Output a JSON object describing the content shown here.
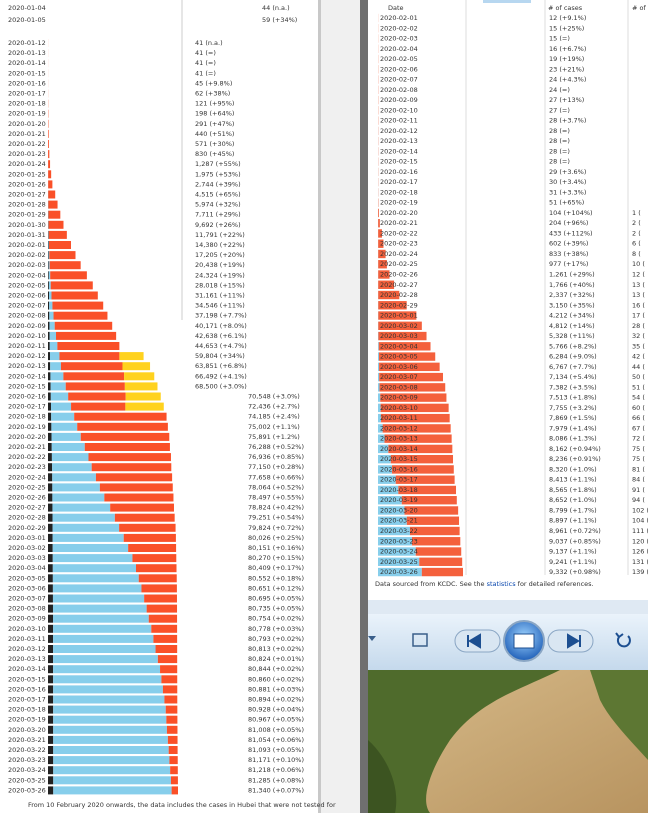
{
  "left_table": {
    "colors": [
      "#222222",
      "#87ceeb",
      "#fa5028",
      "#ffd21e"
    ],
    "top_rows": [
      [
        "2020-01-04",
        "44 (n.a.)"
      ],
      [
        "2020-01-05",
        "59 (+34%)"
      ]
    ],
    "rows": [
      [
        "2020-01-12",
        "41 (n.a.)",
        [
          1,
          0,
          40,
          0
        ]
      ],
      [
        "2020-01-13",
        "41 (=)",
        [
          1,
          0,
          40,
          0
        ]
      ],
      [
        "2020-01-14",
        "41 (=)",
        [
          1,
          0,
          40,
          0
        ]
      ],
      [
        "2020-01-15",
        "41 (=)",
        [
          2,
          0,
          39,
          0
        ]
      ],
      [
        "2020-01-16",
        "45 (+9.8%)",
        [
          2,
          0,
          43,
          0
        ]
      ],
      [
        "2020-01-17",
        "62 (+38%)",
        [
          2,
          0,
          60,
          0
        ]
      ],
      [
        "2020-01-18",
        "121 (+95%)",
        [
          3,
          0,
          118,
          0
        ]
      ],
      [
        "2020-01-19",
        "198 (+64%)",
        [
          3,
          0,
          195,
          0
        ]
      ],
      [
        "2020-01-20",
        "291 (+47%)",
        [
          6,
          25,
          260,
          0
        ]
      ],
      [
        "2020-01-21",
        "440 (+51%)",
        [
          9,
          25,
          406,
          0
        ]
      ],
      [
        "2020-01-22",
        "571 (+30%)",
        [
          17,
          28,
          526,
          0
        ]
      ],
      [
        "2020-01-23",
        "830 (+45%)",
        [
          25,
          34,
          771,
          0
        ]
      ],
      [
        "2020-01-24",
        "1,287 (+55%)",
        [
          41,
          38,
          1208,
          0
        ]
      ],
      [
        "2020-01-25",
        "1,975 (+53%)",
        [
          56,
          49,
          1870,
          0
        ]
      ],
      [
        "2020-01-26",
        "2,744 (+39%)",
        [
          80,
          51,
          2613,
          0
        ]
      ],
      [
        "2020-01-27",
        "4,515 (+65%)",
        [
          106,
          60,
          4349,
          0
        ]
      ],
      [
        "2020-01-28",
        "5,974 (+32%)",
        [
          132,
          103,
          5739,
          0
        ]
      ],
      [
        "2020-01-29",
        "7,711 (+29%)",
        [
          170,
          124,
          7417,
          0
        ]
      ],
      [
        "2020-01-30",
        "9,692 (+26%)",
        [
          213,
          171,
          9308,
          0
        ]
      ],
      [
        "2020-01-31",
        "11,791 (+22%)",
        [
          259,
          243,
          11289,
          0
        ]
      ],
      [
        "2020-02-01",
        "14,380 (+22%)",
        [
          304,
          328,
          13748,
          0
        ]
      ],
      [
        "2020-02-02",
        "17,205 (+20%)",
        [
          361,
          475,
          16369,
          0
        ]
      ],
      [
        "2020-02-03",
        "20,438 (+19%)",
        [
          425,
          632,
          19381,
          0
        ]
      ],
      [
        "2020-02-04",
        "24,324 (+19%)",
        [
          490,
          892,
          22942,
          0
        ]
      ],
      [
        "2020-02-05",
        "28,018 (+15%)",
        [
          563,
          1153,
          26302,
          0
        ]
      ],
      [
        "2020-02-06",
        "31,161 (+11%)",
        [
          636,
          1540,
          28985,
          0
        ]
      ],
      [
        "2020-02-07",
        "34,546 (+11%)",
        [
          722,
          2050,
          31774,
          0
        ]
      ],
      [
        "2020-02-08",
        "37,198 (+7.7%)",
        [
          811,
          2649,
          33738,
          0
        ]
      ],
      [
        "2020-02-09",
        "40,171 (+8.0%)",
        [
          908,
          3281,
          35982,
          0
        ]
      ],
      [
        "2020-02-10",
        "42,638 (+6.1%)",
        [
          1016,
          3996,
          37626,
          0
        ]
      ],
      [
        "2020-02-11",
        "44,653 (+4.7%)",
        [
          1113,
          4740,
          38800,
          0
        ]
      ],
      [
        "2020-02-12",
        "59,804 (+34%)",
        [
          1259,
          5911,
          37500,
          15134
        ]
      ],
      [
        "2020-02-13",
        "63,851 (+6.8%)",
        [
          1380,
          6723,
          38500,
          17248
        ]
      ],
      [
        "2020-02-14",
        "66,492 (+4.1%)",
        [
          1523,
          8096,
          38000,
          18873
        ]
      ],
      [
        "2020-02-15",
        "68,500 (+3.0%)",
        [
          1665,
          9419,
          37000,
          20416
        ]
      ],
      [
        "2020-02-16",
        "70,548 (+3.0%)",
        [
          1770,
          10844,
          36000,
          21934
        ]
      ],
      [
        "2020-02-17",
        "72,436 (+2.7%)",
        [
          1868,
          12552,
          34000,
          24016
        ]
      ],
      [
        "2020-02-18",
        "74,185 (+2.4%)",
        [
          2004,
          14376,
          57805,
          0
        ]
      ],
      [
        "2020-02-19",
        "75,002 (+1.1%)",
        [
          2118,
          16155,
          56729,
          0
        ]
      ],
      [
        "2020-02-20",
        "75,891 (+1.2%)",
        [
          2236,
          18264,
          55391,
          0
        ]
      ],
      [
        "2020-02-21",
        "76,288 (+0.52%)",
        [
          2345,
          20659,
          53284,
          0
        ]
      ],
      [
        "2020-02-22",
        "76,936 (+0.85%)",
        [
          2442,
          22888,
          51606,
          0
        ]
      ],
      [
        "2020-02-23",
        "77,150 (+0.28%)",
        [
          2592,
          24734,
          49824,
          0
        ]
      ],
      [
        "2020-02-24",
        "77,658 (+0.66%)",
        [
          2663,
          27323,
          47672,
          0
        ]
      ],
      [
        "2020-02-25",
        "78,064 (+0.52%)",
        [
          2715,
          29745,
          45604,
          0
        ]
      ],
      [
        "2020-02-26",
        "78,497 (+0.55%)",
        [
          2744,
          32495,
          43258,
          0
        ]
      ],
      [
        "2020-02-27",
        "78,824 (+0.42%)",
        [
          2788,
          36117,
          39919,
          0
        ]
      ],
      [
        "2020-02-28",
        "79,251 (+0.54%)",
        [
          2835,
          39002,
          37414,
          0
        ]
      ],
      [
        "2020-02-29",
        "79,824 (+0.72%)",
        [
          2870,
          41625,
          35329,
          0
        ]
      ],
      [
        "2020-03-01",
        "80,026 (+0.25%)",
        [
          2912,
          44462,
          32652,
          0
        ]
      ],
      [
        "2020-03-02",
        "80,151 (+0.16%)",
        [
          2943,
          47204,
          30004,
          0
        ]
      ],
      [
        "2020-03-03",
        "80,270 (+0.15%)",
        [
          2981,
          49856,
          27433,
          0
        ]
      ],
      [
        "2020-03-04",
        "80,409 (+0.17%)",
        [
          3012,
          52045,
          25352,
          0
        ]
      ],
      [
        "2020-03-05",
        "80,552 (+0.18%)",
        [
          3042,
          53726,
          23784,
          0
        ]
      ],
      [
        "2020-03-06",
        "80,651 (+0.12%)",
        [
          3070,
          55404,
          22177,
          0
        ]
      ],
      [
        "2020-03-07",
        "80,695 (+0.05%)",
        [
          3097,
          57065,
          20533,
          0
        ]
      ],
      [
        "2020-03-08",
        "80,735 (+0.05%)",
        [
          3119,
          58600,
          19016,
          0
        ]
      ],
      [
        "2020-03-09",
        "80,754 (+0.02%)",
        [
          3136,
          59897,
          17721,
          0
        ]
      ],
      [
        "2020-03-10",
        "80,778 (+0.03%)",
        [
          3158,
          61475,
          16145,
          0
        ]
      ],
      [
        "2020-03-11",
        "80,793 (+0.02%)",
        [
          3169,
          62793,
          14831,
          0
        ]
      ],
      [
        "2020-03-12",
        "80,813 (+0.02%)",
        [
          3176,
          64111,
          13526,
          0
        ]
      ],
      [
        "2020-03-13",
        "80,824 (+0.01%)",
        [
          3189,
          65541,
          12094,
          0
        ]
      ],
      [
        "2020-03-14",
        "80,844 (+0.02%)",
        [
          3199,
          66911,
          10734,
          0
        ]
      ],
      [
        "2020-03-15",
        "80,860 (+0.02%)",
        [
          3213,
          67749,
          9898,
          0
        ]
      ],
      [
        "2020-03-16",
        "80,881 (+0.03%)",
        [
          3226,
          68679,
          8976,
          0
        ]
      ],
      [
        "2020-03-17",
        "80,894 (+0.02%)",
        [
          3237,
          69601,
          8056,
          0
        ]
      ],
      [
        "2020-03-18",
        "80,928 (+0.04%)",
        [
          3245,
          70420,
          7263,
          0
        ]
      ],
      [
        "2020-03-19",
        "80,967 (+0.05%)",
        [
          3249,
          70790,
          6928,
          0
        ]
      ],
      [
        "2020-03-20",
        "81,008 (+0.05%)",
        [
          3255,
          71150,
          6603,
          0
        ]
      ],
      [
        "2020-03-21",
        "81,054 (+0.06%)",
        [
          3261,
          71740,
          6053,
          0
        ]
      ],
      [
        "2020-03-22",
        "81,093 (+0.05%)",
        [
          3270,
          72244,
          5579,
          0
        ]
      ],
      [
        "2020-03-23",
        "81,171 (+0.10%)",
        [
          3277,
          72703,
          5191,
          0
        ]
      ],
      [
        "2020-03-24",
        "81,218 (+0.06%)",
        [
          3281,
          73159,
          4778,
          0
        ]
      ],
      [
        "2020-03-25",
        "81,285 (+0.08%)",
        [
          3287,
          73650,
          4348,
          0
        ]
      ],
      [
        "2020-03-26",
        "81,340 (+0.07%)",
        [
          3292,
          74051,
          3997,
          0
        ]
      ]
    ],
    "footnote": "From 10 February 2020 onwards, the data includes the cases in Hubei that were not tested for"
  },
  "right_table": {
    "headers": [
      "Date",
      "# of cases",
      "# of de"
    ],
    "colors": [
      "#87ceeb",
      "#f4603c"
    ],
    "rows": [
      [
        "2020-02-01",
        "12 (+9.1%)",
        null,
        [
          0,
          12
        ]
      ],
      [
        "2020-02-02",
        "15 (+25%)",
        null,
        [
          0,
          15
        ]
      ],
      [
        "2020-02-03",
        "15 (=)",
        null,
        [
          0,
          15
        ]
      ],
      [
        "2020-02-04",
        "16 (+6.7%)",
        null,
        [
          0,
          16
        ]
      ],
      [
        "2020-02-05",
        "19 (+19%)",
        null,
        [
          0,
          19
        ]
      ],
      [
        "2020-02-06",
        "23 (+21%)",
        null,
        [
          1,
          22
        ]
      ],
      [
        "2020-02-07",
        "24 (+4.3%)",
        null,
        [
          2,
          22
        ]
      ],
      [
        "2020-02-08",
        "24 (=)",
        null,
        [
          2,
          22
        ]
      ],
      [
        "2020-02-09",
        "27 (+13%)",
        null,
        [
          3,
          24
        ]
      ],
      [
        "2020-02-10",
        "27 (=)",
        null,
        [
          3,
          24
        ]
      ],
      [
        "2020-02-11",
        "28 (+3.7%)",
        null,
        [
          3,
          25
        ]
      ],
      [
        "2020-02-12",
        "28 (=)",
        null,
        [
          7,
          21
        ]
      ],
      [
        "2020-02-13",
        "28 (=)",
        null,
        [
          7,
          21
        ]
      ],
      [
        "2020-02-14",
        "28 (=)",
        null,
        [
          7,
          21
        ]
      ],
      [
        "2020-02-15",
        "28 (=)",
        null,
        [
          7,
          21
        ]
      ],
      [
        "2020-02-16",
        "29 (+3.6%)",
        null,
        [
          9,
          20
        ]
      ],
      [
        "2020-02-17",
        "30 (+3.4%)",
        null,
        [
          10,
          20
        ]
      ],
      [
        "2020-02-18",
        "31 (+3.3%)",
        null,
        [
          12,
          19
        ]
      ],
      [
        "2020-02-19",
        "51 (+65%)",
        null,
        [
          16,
          35
        ]
      ],
      [
        "2020-02-20",
        "104 (+104%)",
        "1 (",
        [
          16,
          88
        ]
      ],
      [
        "2020-02-21",
        "204 (+96%)",
        "2 (",
        [
          16,
          188
        ]
      ],
      [
        "2020-02-22",
        "433 (+112%)",
        "2 (",
        [
          16,
          417
        ]
      ],
      [
        "2020-02-23",
        "602 (+39%)",
        "6 (",
        [
          18,
          584
        ]
      ],
      [
        "2020-02-24",
        "833 (+38%)",
        "8 (",
        [
          22,
          811
        ]
      ],
      [
        "2020-02-25",
        "977 (+17%)",
        "10 (",
        [
          22,
          955
        ]
      ],
      [
        "2020-02-26",
        "1,261 (+29%)",
        "12 (",
        [
          22,
          1239
        ]
      ],
      [
        "2020-02-27",
        "1,766 (+40%)",
        "13 (",
        [
          22,
          1744
        ]
      ],
      [
        "2020-02-28",
        "2,337 (+32%)",
        "13 (",
        [
          22,
          2315
        ]
      ],
      [
        "2020-02-29",
        "3,150 (+35%)",
        "16 (",
        [
          27,
          3123
        ]
      ],
      [
        "2020-03-01",
        "4,212 (+34%)",
        "17 (",
        [
          30,
          4182
        ]
      ],
      [
        "2020-03-02",
        "4,812 (+14%)",
        "28 (",
        [
          30,
          4782
        ]
      ],
      [
        "2020-03-03",
        "5,328 (+11%)",
        "32 (",
        [
          41,
          5287
        ]
      ],
      [
        "2020-03-04",
        "5,766 (+8.2%)",
        "35 (",
        [
          88,
          5678
        ]
      ],
      [
        "2020-03-05",
        "6,284 (+9.0%)",
        "42 (",
        [
          108,
          6176
        ]
      ],
      [
        "2020-03-06",
        "6,767 (+7.7%)",
        "44 (",
        [
          118,
          6649
        ]
      ],
      [
        "2020-03-07",
        "7,134 (+5.4%)",
        "50 (",
        [
          130,
          7004
        ]
      ],
      [
        "2020-03-08",
        "7,382 (+3.5%)",
        "51 (",
        [
          166,
          7216
        ]
      ],
      [
        "2020-03-09",
        "7,513 (+1.8%)",
        "54 (",
        [
          247,
          7266
        ]
      ],
      [
        "2020-03-10",
        "7,755 (+3.2%)",
        "60 (",
        [
          288,
          7467
        ]
      ],
      [
        "2020-03-11",
        "7,869 (+1.5%)",
        "66 (",
        [
          333,
          7536
        ]
      ],
      [
        "2020-03-12",
        "7,979 (+1.4%)",
        "67 (",
        [
          510,
          7469
        ]
      ],
      [
        "2020-03-13",
        "8,086 (+1.3%)",
        "72 (",
        [
          714,
          7372
        ]
      ],
      [
        "2020-03-14",
        "8,162 (+0.94%)",
        "75 (",
        [
          1137,
          7025
        ]
      ],
      [
        "2020-03-15",
        "8,236 (+0.91%)",
        "75 (",
        [
          1407,
          6829
        ]
      ],
      [
        "2020-03-16",
        "8,320 (+1.0%)",
        "81 (",
        [
          1540,
          6780
        ]
      ],
      [
        "2020-03-17",
        "8,413 (+1.1%)",
        "84 (",
        [
          1947,
          6466
        ]
      ],
      [
        "2020-03-18",
        "8,565 (+1.8%)",
        "91 (",
        [
          2233,
          6332
        ]
      ],
      [
        "2020-03-19",
        "8,652 (+1.0%)",
        "94 (",
        [
          2612,
          6040
        ]
      ],
      [
        "2020-03-20",
        "8,799 (+1.7%)",
        "102 (",
        [
          2909,
          5890
        ]
      ],
      [
        "2020-03-21",
        "8,897 (+1.1%)",
        "104 (",
        [
          3166,
          5731
        ]
      ],
      [
        "2020-03-22",
        "8,961 (+0.72%)",
        "111 (",
        [
          3507,
          5454
        ]
      ],
      [
        "2020-03-23",
        "9,037 (+0.85%)",
        "120 (",
        [
          3730,
          5307
        ]
      ],
      [
        "2020-03-24",
        "9,137 (+1.1%)",
        "126 (",
        [
          4144,
          4993
        ]
      ],
      [
        "2020-03-25",
        "9,241 (+1.1%)",
        "131 (",
        [
          4528,
          4713
        ]
      ],
      [
        "2020-03-26",
        "9,332 (+0.98%)",
        "139 (",
        [
          4811,
          4521
        ]
      ]
    ],
    "footnote": [
      "Data sourced from KCDC. See the ",
      "statistics",
      " for detailed references."
    ]
  }
}
